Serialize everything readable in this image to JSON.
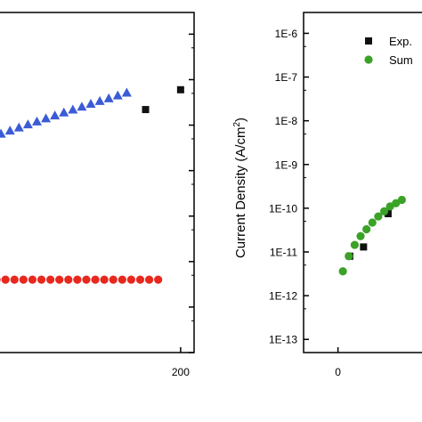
{
  "chart_data": [
    {
      "type": "scatter",
      "panel": "left (cropped)",
      "title": "",
      "xlabel": "",
      "ylabel": "",
      "grid": false,
      "log_y": true,
      "xlim": [
        -15,
        215
      ],
      "ylim": [
        1e-13,
        3e-06
      ],
      "x_ticks": [
        {
          "value": 200,
          "label": "200"
        }
      ],
      "y_ticks": [],
      "series": [
        {
          "marker": "square",
          "color": "#111111",
          "points": [
            [
              161,
              2.2e-08
            ],
            [
              200,
              6e-08
            ]
          ]
        },
        {
          "marker": "triangle",
          "color": "#3b5bd6",
          "points": [
            [
              0,
              6.5e-09
            ],
            [
              10,
              7.6e-09
            ],
            [
              20,
              8.9e-09
            ],
            [
              30,
              1.04e-08
            ],
            [
              40,
              1.21e-08
            ],
            [
              50,
              1.41e-08
            ],
            [
              60,
              1.64e-08
            ],
            [
              70,
              1.91e-08
            ],
            [
              80,
              2.2e-08
            ],
            [
              90,
              2.55e-08
            ],
            [
              100,
              2.95e-08
            ],
            [
              110,
              3.4e-08
            ],
            [
              120,
              3.9e-08
            ],
            [
              130,
              4.5e-08
            ],
            [
              140,
              5.2e-08
            ]
          ]
        },
        {
          "marker": "circle",
          "color": "#e8281e",
          "points": [
            [
              -5,
              4e-12
            ],
            [
              5,
              4e-12
            ],
            [
              15,
              4e-12
            ],
            [
              25,
              4e-12
            ],
            [
              35,
              4e-12
            ],
            [
              45,
              4e-12
            ],
            [
              55,
              4e-12
            ],
            [
              65,
              4e-12
            ],
            [
              75,
              4e-12
            ],
            [
              85,
              4e-12
            ],
            [
              95,
              4e-12
            ],
            [
              105,
              4e-12
            ],
            [
              115,
              4e-12
            ],
            [
              125,
              4e-12
            ],
            [
              135,
              4e-12
            ],
            [
              145,
              4e-12
            ],
            [
              155,
              4e-12
            ],
            [
              165,
              4e-12
            ],
            [
              175,
              4e-12
            ]
          ]
        }
      ]
    },
    {
      "type": "scatter",
      "panel": "right (cropped)",
      "title": "",
      "xlabel": "",
      "ylabel": "Current Density (A/cm",
      "ylabel_sup": "2",
      "ylabel_end": ")",
      "grid": false,
      "log_y": true,
      "xlim": [
        -35,
        100
      ],
      "ylim": [
        5e-14,
        3e-06
      ],
      "x_ticks": [
        {
          "value": 0,
          "label": "0"
        }
      ],
      "y_ticks": [
        {
          "value": 1e-06,
          "label": "1E-6"
        },
        {
          "value": 1e-07,
          "label": "1E-7"
        },
        {
          "value": 1e-08,
          "label": "1E-8"
        },
        {
          "value": 1e-09,
          "label": "1E-9"
        },
        {
          "value": 1e-10,
          "label": "1E-10"
        },
        {
          "value": 1e-11,
          "label": "1E-11"
        },
        {
          "value": 1e-12,
          "label": "1E-12"
        },
        {
          "value": 1e-13,
          "label": "1E-13"
        }
      ],
      "legend": {
        "position": "top-right",
        "entries": [
          {
            "label": "Exp.",
            "marker": "square",
            "color": "#111111"
          },
          {
            "label": "Sum",
            "marker": "circle",
            "color": "#3aa227"
          }
        ]
      },
      "series": [
        {
          "name": "Exp.",
          "marker": "square",
          "color": "#111111",
          "points": [
            [
              12,
              8e-12
            ],
            [
              26,
              1.3e-11
            ],
            [
              51,
              7.5e-11
            ]
          ]
        },
        {
          "name": "Sum",
          "marker": "circle",
          "color": "#3aa227",
          "points": [
            [
              5,
              3.6e-12
            ],
            [
              11,
              8e-12
            ],
            [
              17,
              1.45e-11
            ],
            [
              23,
              2.3e-11
            ],
            [
              29,
              3.3e-11
            ],
            [
              35,
              4.7e-11
            ],
            [
              41,
              6.5e-11
            ],
            [
              47,
              8.5e-11
            ],
            [
              53,
              1.1e-10
            ],
            [
              59,
              1.3e-10
            ],
            [
              65,
              1.55e-10
            ]
          ]
        }
      ]
    }
  ]
}
